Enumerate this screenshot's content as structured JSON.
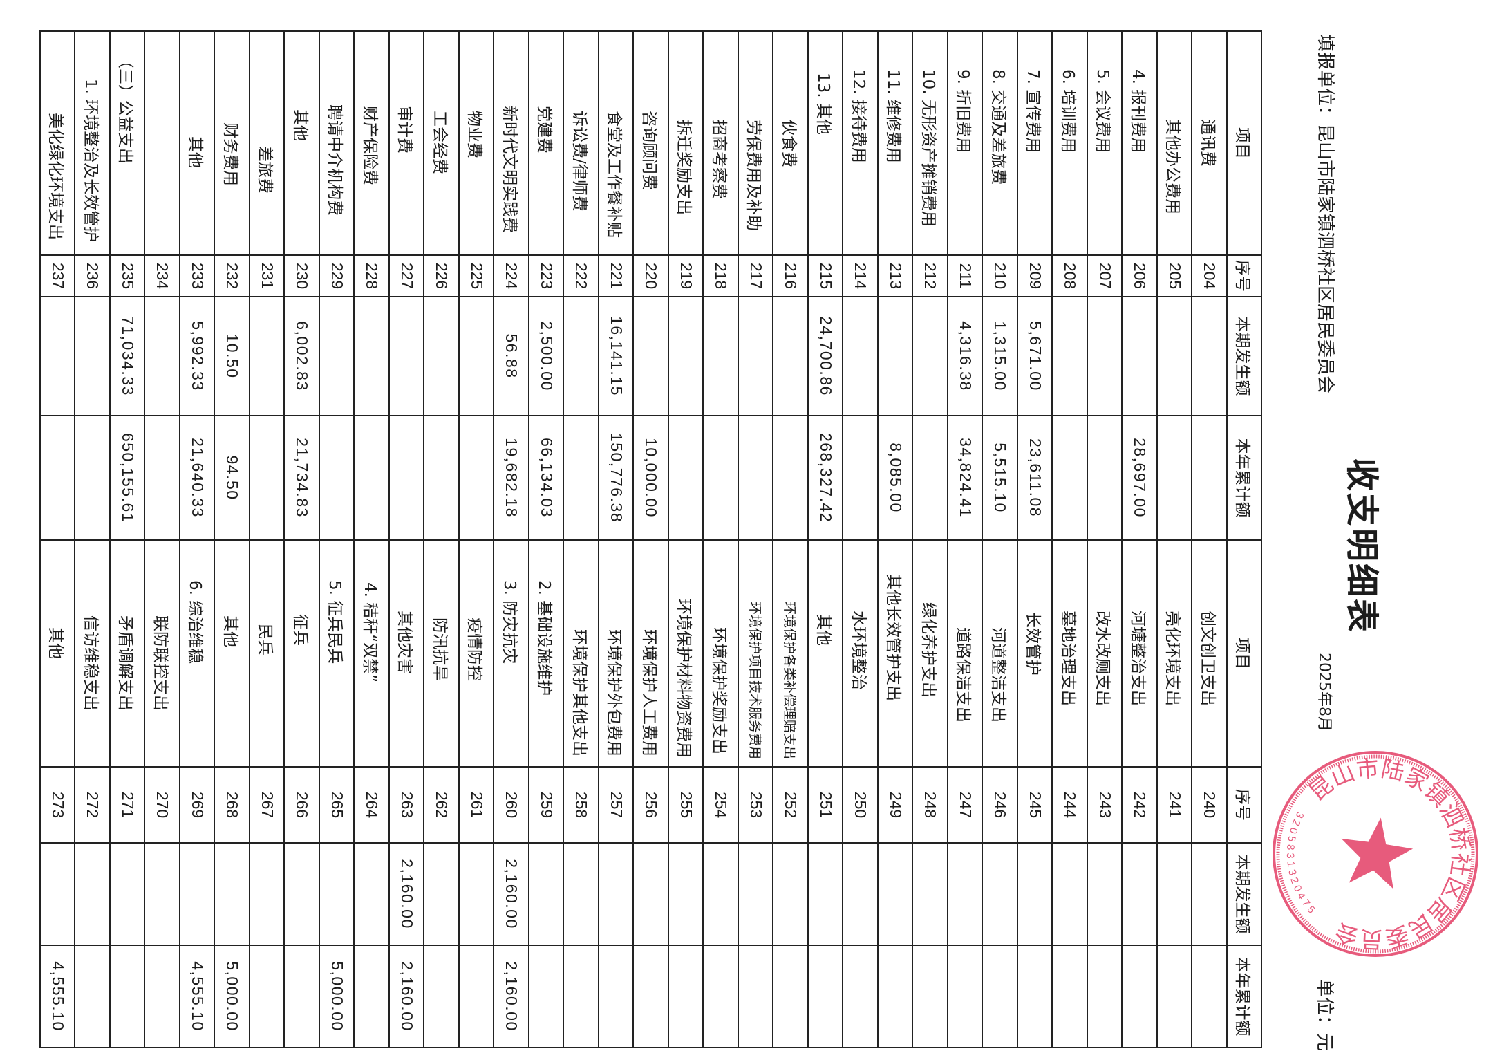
{
  "header": {
    "title": "收支明细表",
    "reporting_unit": "填报单位：昆山市陆家镇泗桥社区居民委员会",
    "period": "2025年8月",
    "currency_unit": "单位：元"
  },
  "columns": [
    "项目",
    "序号",
    "本期发生额",
    "本年累计额",
    "项目",
    "序号",
    "本期发生额",
    "本年累计额"
  ],
  "rows_left": [
    {
      "item": "通讯费",
      "no": "204",
      "current": "",
      "ytd": ""
    },
    {
      "item": "其他办公费用",
      "no": "205",
      "current": "",
      "ytd": ""
    },
    {
      "item": "4. 报刊费用",
      "no": "206",
      "current": "",
      "ytd": "28,697.00"
    },
    {
      "item": "5. 会议费用",
      "no": "207",
      "current": "",
      "ytd": ""
    },
    {
      "item": "6. 培训费用",
      "no": "208",
      "current": "",
      "ytd": ""
    },
    {
      "item": "7. 宣传费用",
      "no": "209",
      "current": "5,671.00",
      "ytd": "23,611.08"
    },
    {
      "item": "8. 交通及差旅费",
      "no": "210",
      "current": "1,315.00",
      "ytd": "5,515.10"
    },
    {
      "item": "9. 折旧费用",
      "no": "211",
      "current": "4,316.38",
      "ytd": "34,824.41"
    },
    {
      "item": "10. 无形资产摊销费用",
      "no": "212",
      "current": "",
      "ytd": ""
    },
    {
      "item": "11. 维修费用",
      "no": "213",
      "current": "",
      "ytd": "8,085.00"
    },
    {
      "item": "12. 接待费用",
      "no": "214",
      "current": "",
      "ytd": ""
    },
    {
      "item": "13. 其他",
      "no": "215",
      "current": "24,700.86",
      "ytd": "268,327.42"
    },
    {
      "item": "伙食费",
      "no": "216",
      "current": "",
      "ytd": ""
    },
    {
      "item": "劳保费用及补助",
      "no": "217",
      "current": "",
      "ytd": ""
    },
    {
      "item": "招商考察费",
      "no": "218",
      "current": "",
      "ytd": ""
    },
    {
      "item": "拆迁奖励支出",
      "no": "219",
      "current": "",
      "ytd": ""
    },
    {
      "item": "咨询顾问费",
      "no": "220",
      "current": "",
      "ytd": "10,000.00"
    },
    {
      "item": "食堂及工作餐补贴",
      "no": "221",
      "current": "16,141.15",
      "ytd": "150,776.38"
    },
    {
      "item": "诉讼费/律师费",
      "no": "222",
      "current": "",
      "ytd": ""
    },
    {
      "item": "党建费",
      "no": "223",
      "current": "2,500.00",
      "ytd": "66,134.03"
    },
    {
      "item": "新时代文明实践费",
      "no": "224",
      "current": "56.88",
      "ytd": "19,682.18"
    },
    {
      "item": "物业费",
      "no": "225",
      "current": "",
      "ytd": ""
    },
    {
      "item": "工会经费",
      "no": "226",
      "current": "",
      "ytd": ""
    },
    {
      "item": "审计费",
      "no": "227",
      "current": "",
      "ytd": ""
    },
    {
      "item": "财产保险费",
      "no": "228",
      "current": "",
      "ytd": ""
    },
    {
      "item": "聘请中介机构费",
      "no": "229",
      "current": "",
      "ytd": ""
    },
    {
      "item": "其他",
      "no": "230",
      "current": "6,002.83",
      "ytd": "21,734.83"
    },
    {
      "item": "差旅费",
      "no": "231",
      "current": "",
      "ytd": ""
    },
    {
      "item": "财务费用",
      "no": "232",
      "current": "10.50",
      "ytd": "94.50"
    },
    {
      "item": "其他",
      "no": "233",
      "current": "5,992.33",
      "ytd": "21,640.33"
    },
    {
      "item": "",
      "no": "234",
      "current": "",
      "ytd": ""
    },
    {
      "item": "（三）公益支出",
      "no": "235",
      "current": "71,034.33",
      "ytd": "650,155.61"
    },
    {
      "item": "1. 环境整治及长效管护",
      "no": "236",
      "current": "",
      "ytd": ""
    },
    {
      "item": "美化绿化环境支出",
      "no": "237",
      "current": "",
      "ytd": ""
    }
  ],
  "rows_right": [
    {
      "item": "创文创卫支出",
      "no": "240",
      "current": "",
      "ytd": ""
    },
    {
      "item": "亮化环境支出",
      "no": "241",
      "current": "",
      "ytd": ""
    },
    {
      "item": "河塘整治支出",
      "no": "242",
      "current": "",
      "ytd": ""
    },
    {
      "item": "改水改厕支出",
      "no": "243",
      "current": "",
      "ytd": ""
    },
    {
      "item": "墓地治理支出",
      "no": "244",
      "current": "",
      "ytd": ""
    },
    {
      "item": "长效管护",
      "no": "245",
      "current": "",
      "ytd": ""
    },
    {
      "item": "河道整洁支出",
      "no": "246",
      "current": "",
      "ytd": ""
    },
    {
      "item": "道路保洁支出",
      "no": "247",
      "current": "",
      "ytd": ""
    },
    {
      "item": "绿化养护支出",
      "no": "248",
      "current": "",
      "ytd": ""
    },
    {
      "item": "其他长效管护支出",
      "no": "249",
      "current": "",
      "ytd": ""
    },
    {
      "item": "水环境整治",
      "no": "250",
      "current": "",
      "ytd": ""
    },
    {
      "item": "其他",
      "no": "251",
      "current": "",
      "ytd": ""
    },
    {
      "item": "环境保护各类补偿理赔支出",
      "no": "252",
      "current": "",
      "ytd": ""
    },
    {
      "item": "环境保护项目技术服务费用",
      "no": "253",
      "current": "",
      "ytd": ""
    },
    {
      "item": "环境保护奖励支出",
      "no": "254",
      "current": "",
      "ytd": ""
    },
    {
      "item": "环境保护材料物资费用",
      "no": "255",
      "current": "",
      "ytd": ""
    },
    {
      "item": "环境保护人工费用",
      "no": "256",
      "current": "",
      "ytd": ""
    },
    {
      "item": "环境保护外包费用",
      "no": "257",
      "current": "",
      "ytd": ""
    },
    {
      "item": "环境保护其他支出",
      "no": "258",
      "current": "",
      "ytd": ""
    },
    {
      "item": "2. 基础设施维护",
      "no": "259",
      "current": "",
      "ytd": ""
    },
    {
      "item": "3. 防灾抗灾",
      "no": "260",
      "current": "2,160.00",
      "ytd": "2,160.00"
    },
    {
      "item": "疫情防控",
      "no": "261",
      "current": "",
      "ytd": ""
    },
    {
      "item": "防汛抗旱",
      "no": "262",
      "current": "",
      "ytd": ""
    },
    {
      "item": "其他灾害",
      "no": "263",
      "current": "2,160.00",
      "ytd": "2,160.00"
    },
    {
      "item": "4. 秸秆“双禁”",
      "no": "264",
      "current": "",
      "ytd": ""
    },
    {
      "item": "5. 征兵民兵",
      "no": "265",
      "current": "",
      "ytd": "5,000.00"
    },
    {
      "item": "征兵",
      "no": "266",
      "current": "",
      "ytd": ""
    },
    {
      "item": "民兵",
      "no": "267",
      "current": "",
      "ytd": ""
    },
    {
      "item": "其他",
      "no": "268",
      "current": "",
      "ytd": "5,000.00"
    },
    {
      "item": "6. 综治维稳",
      "no": "269",
      "current": "",
      "ytd": "4,555.10"
    },
    {
      "item": "联防联控支出",
      "no": "270",
      "current": "",
      "ytd": ""
    },
    {
      "item": "矛盾调解支出",
      "no": "271",
      "current": "",
      "ytd": ""
    },
    {
      "item": "信访维稳支出",
      "no": "272",
      "current": "",
      "ytd": ""
    },
    {
      "item": "其他",
      "no": "273",
      "current": "",
      "ytd": "4,555.10"
    }
  ],
  "stamp": {
    "org_name": "昆山市陆家镇泗桥社区居民委员会",
    "code": "3205831320475",
    "color": "#e4456b",
    "icon": "star-icon"
  }
}
